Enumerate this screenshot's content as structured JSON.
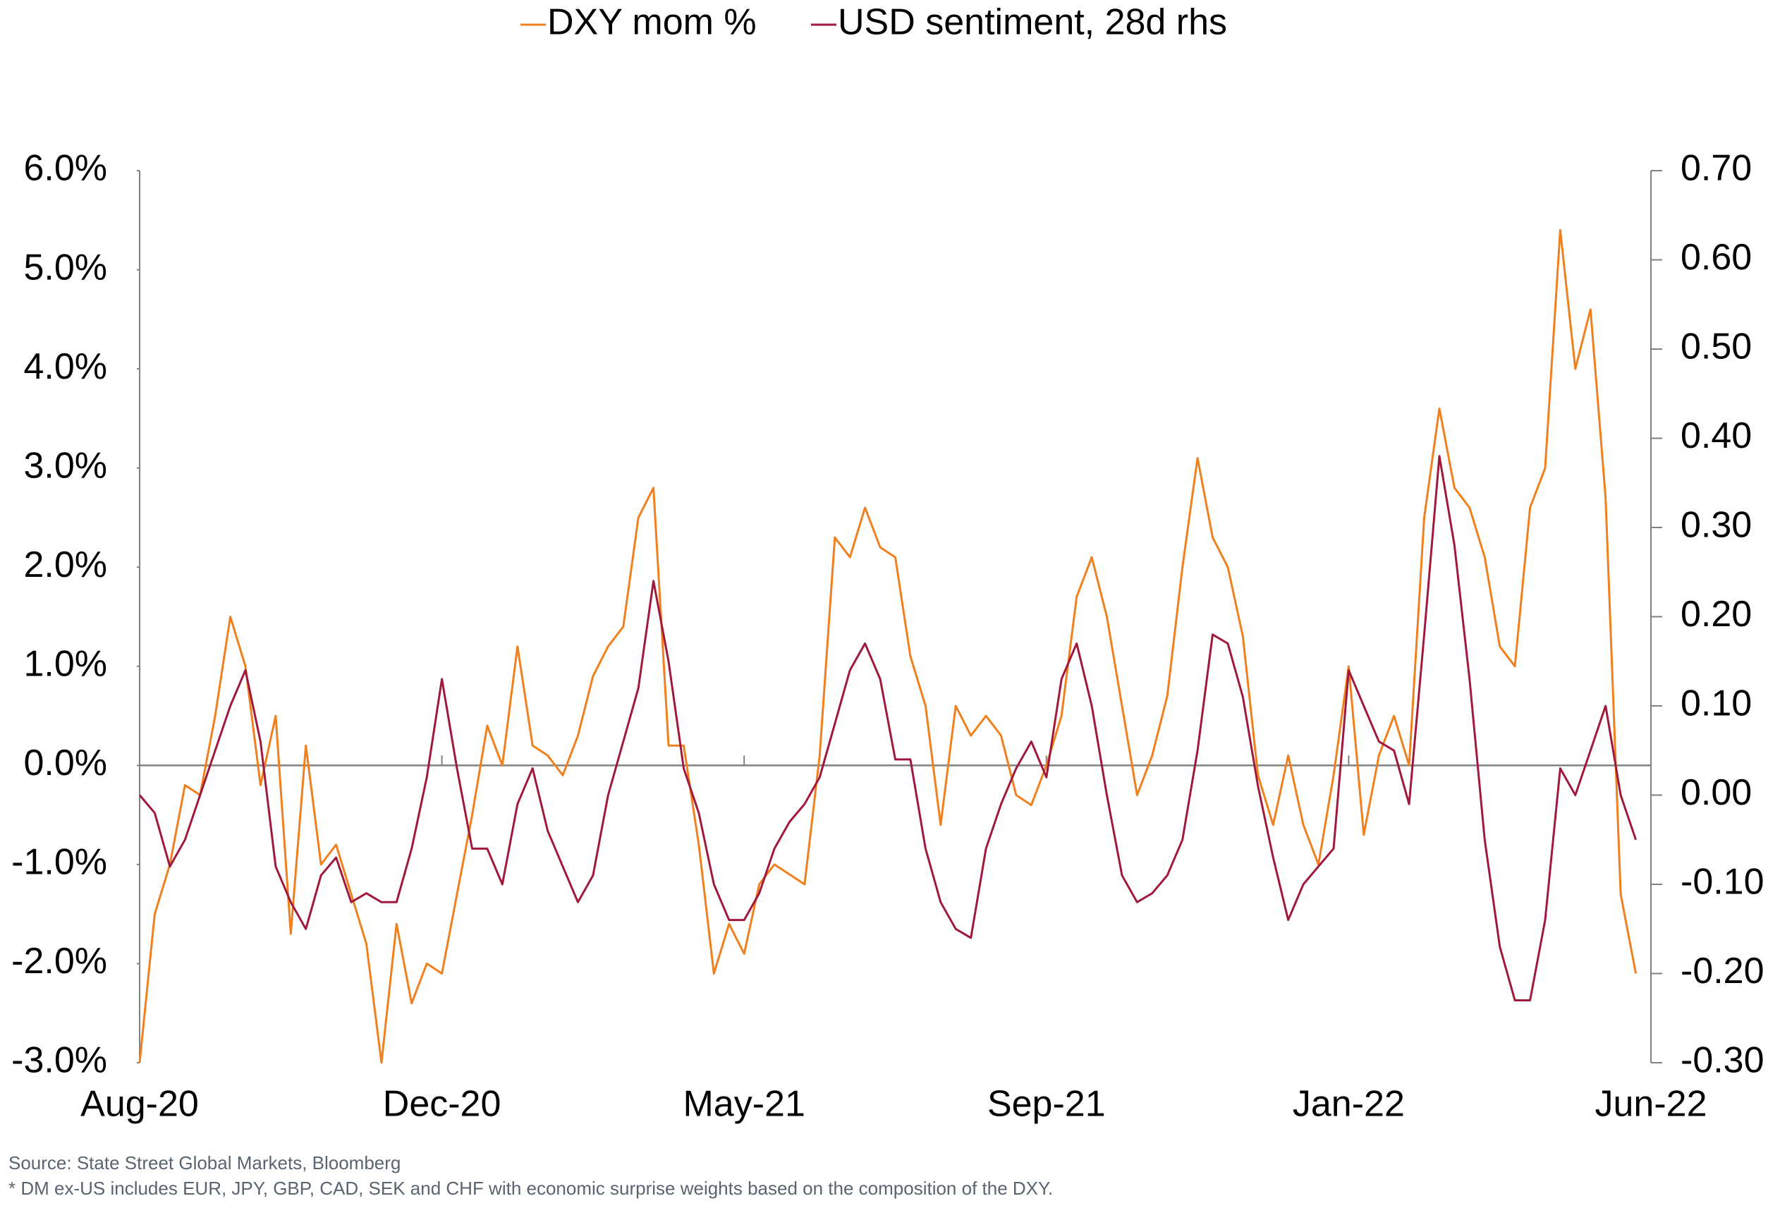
{
  "chart_data": {
    "type": "line",
    "legend": "top",
    "categories": [
      "Aug-20",
      null,
      null,
      null,
      null,
      null,
      null,
      null,
      null,
      null,
      null,
      null,
      null,
      null,
      null,
      null,
      null,
      null,
      null,
      null,
      "Dec-20",
      null,
      null,
      null,
      null,
      null,
      null,
      null,
      null,
      null,
      null,
      null,
      null,
      null,
      null,
      null,
      null,
      null,
      null,
      null,
      "May-21",
      null,
      null,
      null,
      null,
      null,
      null,
      null,
      null,
      null,
      null,
      null,
      null,
      null,
      null,
      null,
      null,
      null,
      null,
      null,
      "Sep-21",
      null,
      null,
      null,
      null,
      null,
      null,
      null,
      null,
      null,
      null,
      null,
      null,
      null,
      null,
      null,
      null,
      null,
      null,
      null,
      "Jan-22",
      null,
      null,
      null,
      null,
      null,
      null,
      null,
      null,
      null,
      null,
      null,
      null,
      null,
      null,
      null,
      null,
      null,
      null,
      null,
      "Jun-22"
    ],
    "series": [
      {
        "name": "DXY mom %",
        "color": "#f0801e",
        "axis": "y",
        "values": [
          -3.0,
          -1.5,
          -1.0,
          -0.2,
          -0.3,
          0.5,
          1.5,
          1.0,
          -0.2,
          0.5,
          -1.7,
          0.2,
          -1.0,
          -0.8,
          -1.3,
          -1.8,
          -3.0,
          -1.6,
          -2.4,
          -2.0,
          -2.1,
          -1.3,
          -0.5,
          0.4,
          0.0,
          1.2,
          0.2,
          0.1,
          -0.1,
          0.3,
          0.9,
          1.2,
          1.4,
          2.5,
          2.8,
          0.2,
          0.2,
          -0.8,
          -2.1,
          -1.6,
          -1.9,
          -1.2,
          -1.0,
          -1.1,
          -1.2,
          0.1,
          2.3,
          2.1,
          2.6,
          2.2,
          2.1,
          1.1,
          0.6,
          -0.6,
          0.6,
          0.3,
          0.5,
          0.3,
          -0.3,
          -0.4,
          0.0,
          0.5,
          1.7,
          2.1,
          1.5,
          0.6,
          -0.3,
          0.1,
          0.7,
          2.0,
          3.1,
          2.3,
          2.0,
          1.3,
          -0.1,
          -0.6,
          0.1,
          -0.6,
          -1.0,
          -0.1,
          1.0,
          -0.7,
          0.1,
          0.5,
          0.0,
          2.5,
          3.6,
          2.8,
          2.6,
          2.1,
          1.2,
          1.0,
          2.6,
          3.0,
          5.4,
          4.0,
          4.6,
          2.7,
          -1.3,
          -2.1,
          null
        ]
      },
      {
        "name": "USD sentiment, 28d rhs",
        "color": "#a0193c",
        "axis": "y2",
        "values": [
          0.0,
          -0.02,
          -0.08,
          -0.05,
          0.0,
          0.05,
          0.1,
          0.14,
          0.06,
          -0.08,
          -0.12,
          -0.15,
          -0.09,
          -0.07,
          -0.12,
          -0.11,
          -0.12,
          -0.12,
          -0.06,
          0.02,
          0.13,
          0.03,
          -0.06,
          -0.06,
          -0.1,
          -0.01,
          0.03,
          -0.04,
          -0.08,
          -0.12,
          -0.09,
          0.0,
          0.06,
          0.12,
          0.24,
          0.15,
          0.03,
          -0.02,
          -0.1,
          -0.14,
          -0.14,
          -0.11,
          -0.06,
          -0.03,
          -0.01,
          0.02,
          0.08,
          0.14,
          0.17,
          0.13,
          0.04,
          0.04,
          -0.06,
          -0.12,
          -0.15,
          -0.16,
          -0.06,
          -0.01,
          0.03,
          0.06,
          0.02,
          0.13,
          0.17,
          0.1,
          0.0,
          -0.09,
          -0.12,
          -0.11,
          -0.09,
          -0.05,
          0.05,
          0.18,
          0.17,
          0.11,
          0.01,
          -0.07,
          -0.14,
          -0.1,
          -0.08,
          -0.06,
          0.14,
          0.1,
          0.06,
          0.05,
          -0.01,
          0.18,
          0.38,
          0.28,
          0.13,
          -0.05,
          -0.17,
          -0.23,
          -0.23,
          -0.14,
          0.03,
          0.0,
          0.05,
          0.1,
          0.0,
          -0.05,
          null
        ]
      }
    ],
    "ylim": [
      -3,
      6
    ],
    "yticks": [
      {
        "value": -3,
        "label": "-3.0%"
      },
      {
        "value": -2,
        "label": "-2.0%"
      },
      {
        "value": -1,
        "label": "-1.0%"
      },
      {
        "value": 0,
        "label": "0.0%"
      },
      {
        "value": 1,
        "label": "1.0%"
      },
      {
        "value": 2,
        "label": "2.0%"
      },
      {
        "value": 3,
        "label": "3.0%"
      },
      {
        "value": 4,
        "label": "4.0%"
      },
      {
        "value": 5,
        "label": "5.0%"
      },
      {
        "value": 6,
        "label": "6.0%"
      }
    ],
    "y2lim": [
      -0.3,
      0.7
    ],
    "y2ticks": [
      {
        "value": -0.3,
        "label": "-0.30"
      },
      {
        "value": -0.2,
        "label": "-0.20"
      },
      {
        "value": -0.1,
        "label": "-0.10"
      },
      {
        "value": 0,
        "label": "0.00"
      },
      {
        "value": 0.1,
        "label": "0.10"
      },
      {
        "value": 0.2,
        "label": "0.20"
      },
      {
        "value": 0.3,
        "label": "0.30"
      },
      {
        "value": 0.4,
        "label": "0.40"
      },
      {
        "value": 0.5,
        "label": "0.50"
      },
      {
        "value": 0.6,
        "label": "0.60"
      },
      {
        "value": 0.7,
        "label": "0.70"
      }
    ],
    "source": "Source: State Street Global Markets, Bloomberg",
    "note": "* DM ex-US includes EUR, JPY, GBP, CAD, SEK and CHF with economic surprise weights based on the composition of the DXY."
  }
}
